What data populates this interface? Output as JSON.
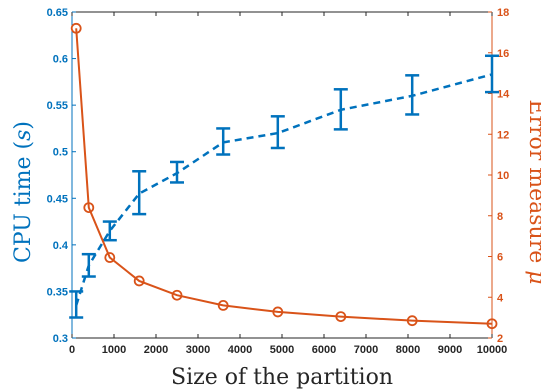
{
  "chart_data": {
    "type": "line",
    "xlabel": "Size of the partition",
    "ylabel_left": "CPU time (s)",
    "ylabel_left_plain": "CPU time (",
    "ylabel_left_var": "s",
    "ylabel_left_close": ")",
    "ylabel_right": "Error measure μ",
    "ylabel_right_plain": "Error measure ",
    "ylabel_right_var": "μ",
    "xlim": [
      0,
      10000
    ],
    "ylim_left": [
      0.3,
      0.65
    ],
    "ylim_right": [
      2,
      18
    ],
    "x_ticks": [
      0,
      1000,
      2000,
      3000,
      4000,
      5000,
      6000,
      7000,
      8000,
      9000,
      10000
    ],
    "y_left_ticks": [
      "0.3",
      "0.35",
      "0.4",
      "0.45",
      "0.5",
      "0.55",
      "0.6",
      "0.65"
    ],
    "y_right_ticks": [
      "2",
      "4",
      "6",
      "8",
      "10",
      "12",
      "14",
      "16",
      "18"
    ],
    "grid": false,
    "series": [
      {
        "axis": "left",
        "style": "dashed-errorbar",
        "color": "#0072BD",
        "x": [
          100,
          400,
          900,
          1600,
          2500,
          3600,
          4900,
          6400,
          8100,
          10000
        ],
        "y": [
          0.335,
          0.378,
          0.415,
          0.455,
          0.477,
          0.51,
          0.52,
          0.545,
          0.56,
          0.583
        ],
        "err_low": [
          0.322,
          0.366,
          0.405,
          0.433,
          0.467,
          0.497,
          0.504,
          0.524,
          0.54,
          0.564
        ],
        "err_high": [
          0.35,
          0.39,
          0.425,
          0.479,
          0.489,
          0.525,
          0.538,
          0.567,
          0.582,
          0.603
        ]
      },
      {
        "axis": "right",
        "style": "solid-circle",
        "color": "#D95319",
        "x": [
          100,
          400,
          900,
          1600,
          2500,
          3600,
          4900,
          6400,
          8100,
          10000
        ],
        "y": [
          17.2,
          8.4,
          5.95,
          4.8,
          4.1,
          3.6,
          3.28,
          3.05,
          2.85,
          2.7
        ]
      }
    ]
  }
}
